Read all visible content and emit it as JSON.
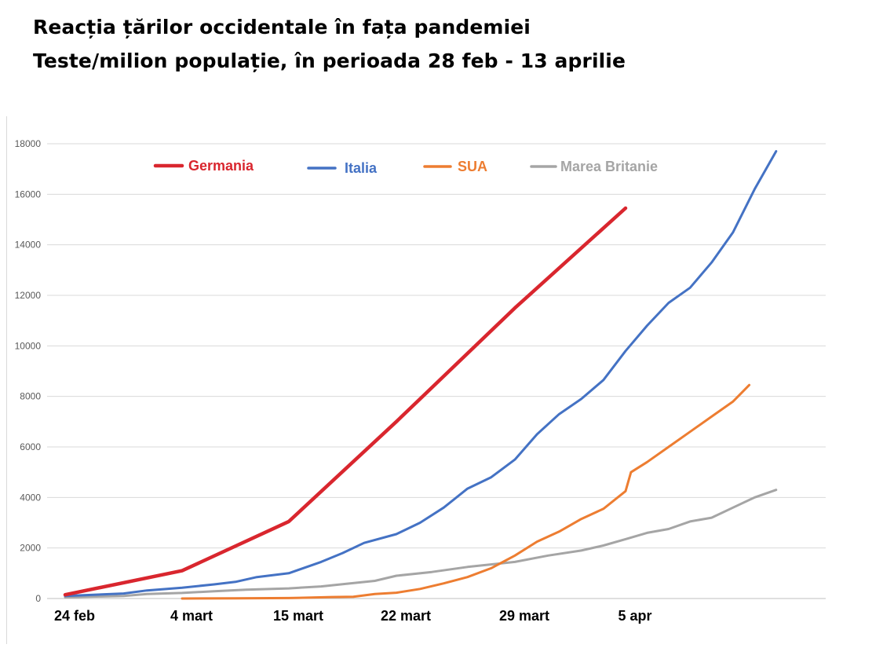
{
  "title_line1": "Reacția țărilor occidentale în fața pandemiei",
  "title_line2": "Teste/milion populație, în perioada 28 feb - 13 aprilie",
  "chart_data": {
    "type": "line",
    "title": "Reacția țărilor occidentale în fața pandemiei — Teste/milion populație, în perioada 28 feb - 13 aprilie",
    "xlabel": "",
    "ylabel": "",
    "x_ticks": [
      "24 feb",
      "4 mart",
      "15 mart",
      "22 mart",
      "29 mart",
      "5 apr"
    ],
    "y_ticks": [
      0,
      2000,
      4000,
      6000,
      8000,
      10000,
      12000,
      14000,
      16000,
      18000
    ],
    "ylim": [
      0,
      18000
    ],
    "grid": true,
    "legend_position": "top",
    "series": [
      {
        "name": "Germania",
        "color": "#d9262e",
        "points": [
          [
            0,
            150
          ],
          [
            1,
            1100
          ],
          [
            2,
            3050
          ],
          [
            3,
            7000
          ],
          [
            4,
            11500
          ],
          [
            5,
            15450
          ]
        ]
      },
      {
        "name": "Italia",
        "color": "#4472c4",
        "points": [
          [
            0,
            100
          ],
          [
            0.5,
            200
          ],
          [
            0.7,
            320
          ],
          [
            1,
            430
          ],
          [
            1.3,
            560
          ],
          [
            1.5,
            660
          ],
          [
            1.7,
            850
          ],
          [
            2,
            1000
          ],
          [
            2.3,
            1450
          ],
          [
            2.5,
            1800
          ],
          [
            2.7,
            2200
          ],
          [
            3,
            2550
          ],
          [
            3.2,
            3000
          ],
          [
            3.4,
            3600
          ],
          [
            3.6,
            4350
          ],
          [
            3.8,
            4800
          ],
          [
            4,
            5500
          ],
          [
            4.2,
            6500
          ],
          [
            4.4,
            7300
          ],
          [
            4.6,
            7900
          ],
          [
            4.8,
            8650
          ],
          [
            5,
            9800
          ],
          [
            5.2,
            10800
          ],
          [
            5.4,
            11700
          ],
          [
            5.6,
            12300
          ],
          [
            5.8,
            13300
          ],
          [
            6,
            14500
          ],
          [
            6.2,
            16200
          ],
          [
            6.4,
            17700
          ]
        ]
      },
      {
        "name": "SUA",
        "color": "#ed7d31",
        "points": [
          [
            1,
            0
          ],
          [
            1.5,
            10
          ],
          [
            2,
            20
          ],
          [
            2.4,
            60
          ],
          [
            2.6,
            70
          ],
          [
            2.8,
            180
          ],
          [
            3,
            230
          ],
          [
            3.2,
            380
          ],
          [
            3.4,
            600
          ],
          [
            3.6,
            850
          ],
          [
            3.8,
            1200
          ],
          [
            4,
            1700
          ],
          [
            4.2,
            2250
          ],
          [
            4.4,
            2650
          ],
          [
            4.6,
            3150
          ],
          [
            4.8,
            3550
          ],
          [
            5,
            4250
          ],
          [
            5.05,
            5000
          ],
          [
            5.2,
            5400
          ],
          [
            5.4,
            6000
          ],
          [
            5.6,
            6600
          ],
          [
            5.8,
            7200
          ],
          [
            6,
            7800
          ],
          [
            6.15,
            8450
          ]
        ]
      },
      {
        "name": "Marea Britanie",
        "color": "#a5a5a5",
        "points": [
          [
            0,
            50
          ],
          [
            0.5,
            100
          ],
          [
            0.7,
            180
          ],
          [
            1,
            220
          ],
          [
            1.3,
            290
          ],
          [
            1.6,
            350
          ],
          [
            2,
            400
          ],
          [
            2.3,
            480
          ],
          [
            2.5,
            570
          ],
          [
            2.8,
            700
          ],
          [
            3,
            900
          ],
          [
            3.3,
            1050
          ],
          [
            3.6,
            1250
          ],
          [
            4,
            1450
          ],
          [
            4.3,
            1700
          ],
          [
            4.6,
            1900
          ],
          [
            4.8,
            2100
          ],
          [
            5,
            2350
          ],
          [
            5.2,
            2600
          ],
          [
            5.4,
            2750
          ],
          [
            5.6,
            3050
          ],
          [
            5.8,
            3200
          ],
          [
            6,
            3600
          ],
          [
            6.2,
            4000
          ],
          [
            6.4,
            4300
          ]
        ]
      }
    ]
  }
}
